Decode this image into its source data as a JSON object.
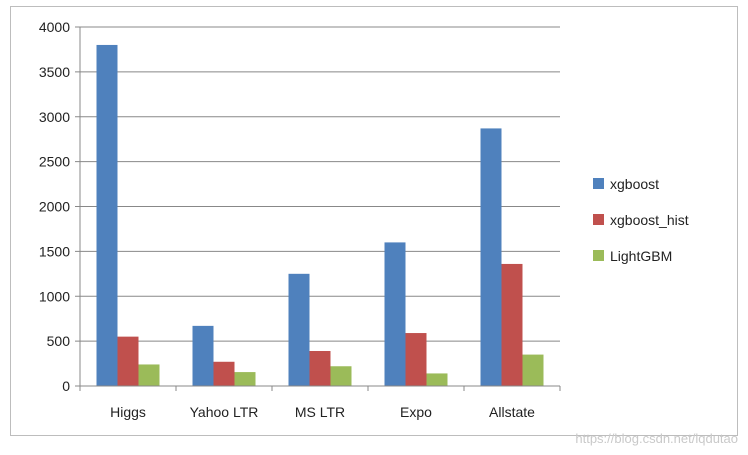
{
  "chart_data": {
    "type": "bar",
    "categories": [
      "Higgs",
      "Yahoo LTR",
      "MS LTR",
      "Expo",
      "Allstate"
    ],
    "series": [
      {
        "name": "xgboost",
        "color": "#4f81bd",
        "values": [
          3800,
          670,
          1250,
          1600,
          2870
        ]
      },
      {
        "name": "xgboost_hist",
        "color": "#c0504d",
        "values": [
          550,
          270,
          390,
          590,
          1360
        ]
      },
      {
        "name": "LightGBM",
        "color": "#9bbb59",
        "values": [
          240,
          155,
          220,
          140,
          350
        ]
      }
    ],
    "ylim": [
      0,
      4000
    ],
    "yticks": [
      "0",
      "500",
      "1000",
      "1500",
      "2000",
      "2500",
      "3000",
      "3500",
      "4000"
    ],
    "grid": true,
    "legend_position": "right",
    "watermark": "https://blog.csdn.net/lqdutao"
  }
}
